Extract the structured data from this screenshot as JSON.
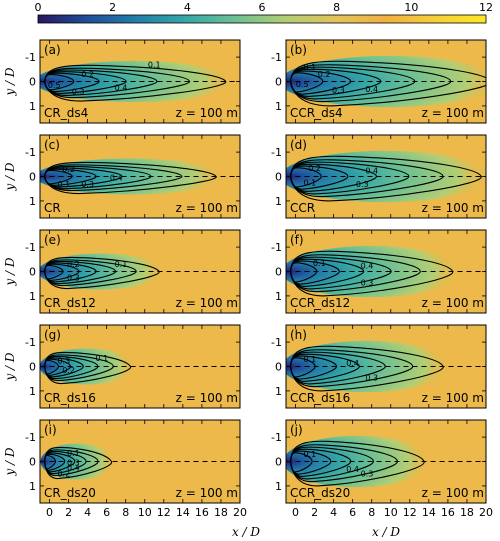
{
  "chart_data": {
    "type": "heatmap",
    "colorbar": {
      "ticks": [
        "0",
        "2",
        "4",
        "6",
        "8",
        "10",
        "12"
      ],
      "range": [
        0,
        12
      ],
      "colormap": [
        "#26185f",
        "#1f4e9a",
        "#237fa8",
        "#36a8a6",
        "#6fc192",
        "#b3ce73",
        "#e3c35a",
        "#f1b040",
        "#f7d038",
        "#fde725"
      ]
    },
    "x_ticks": [
      "0",
      "2",
      "4",
      "6",
      "8",
      "10",
      "12",
      "14",
      "16",
      "18",
      "20"
    ],
    "y_ticks": [
      "-1",
      "0",
      "1"
    ],
    "xlim": [
      -1,
      20
    ],
    "ylim": [
      1.7,
      -1.7
    ],
    "xlabel": "x / D",
    "ylabel": "y / D",
    "height_label": "z = 100 m",
    "background_value": 9.3,
    "panels": [
      {
        "letter": "(a)",
        "case": "CR_ds4",
        "wake_length": 19,
        "wake_width": 0.8,
        "contours": [
          {
            "value": "0.1",
            "x": 11,
            "y": -0.7
          },
          {
            "value": "0.2",
            "x": 4,
            "y": -0.3
          },
          {
            "value": "0.3",
            "x": 3,
            "y": 0.4
          },
          {
            "value": "0.4",
            "x": 7.5,
            "y": 0.25
          },
          {
            "value": "0.5",
            "x": 0.5,
            "y": 0.15
          }
        ]
      },
      {
        "letter": "(b)",
        "case": "CCR_ds4",
        "wake_length": 21,
        "wake_width": 1.0,
        "contours": [
          {
            "value": "0.1",
            "x": 1.5,
            "y": -0.6
          },
          {
            "value": "0.2",
            "x": 3,
            "y": -0.3
          },
          {
            "value": "0.3",
            "x": 4.5,
            "y": 0.35
          },
          {
            "value": "0.4",
            "x": 8,
            "y": 0.3
          },
          {
            "value": "0.5",
            "x": 0.7,
            "y": 0.1
          }
        ]
      },
      {
        "letter": "(c)",
        "case": "CR",
        "wake_length": 18,
        "wake_width": 0.7,
        "contours": [
          {
            "value": "0.2",
            "x": 2,
            "y": -0.3
          },
          {
            "value": "0.1",
            "x": 1.5,
            "y": 0.3
          },
          {
            "value": "0.3",
            "x": 4,
            "y": 0.3
          },
          {
            "value": "0.4",
            "x": 7,
            "y": 0.05
          }
        ]
      },
      {
        "letter": "(d)",
        "case": "CCR",
        "wake_length": 20,
        "wake_width": 1.0,
        "contours": [
          {
            "value": "0.2",
            "x": 2,
            "y": -0.35
          },
          {
            "value": "0.4",
            "x": 8,
            "y": -0.25
          },
          {
            "value": "0.3",
            "x": 7,
            "y": 0.3
          },
          {
            "value": "0.1",
            "x": 1.5,
            "y": 0.25
          }
        ]
      },
      {
        "letter": "(e)",
        "case": "CR_ds12",
        "wake_length": 12,
        "wake_width": 0.7,
        "contours": [
          {
            "value": "0.2",
            "x": 2.5,
            "y": -0.3
          },
          {
            "value": "0.1",
            "x": 7.5,
            "y": -0.3
          },
          {
            "value": "0.3",
            "x": 2.5,
            "y": 0.25
          }
        ]
      },
      {
        "letter": "(f)",
        "case": "CCR_ds12",
        "wake_length": 17,
        "wake_width": 1.0,
        "contours": [
          {
            "value": "0.1",
            "x": 2.5,
            "y": -0.35
          },
          {
            "value": "0.4",
            "x": 7.5,
            "y": -0.25
          },
          {
            "value": "0.3",
            "x": 7.5,
            "y": 0.45
          }
        ]
      },
      {
        "letter": "(g)",
        "case": "CR_ds16",
        "wake_length": 9,
        "wake_width": 0.7,
        "contours": [
          {
            "value": "0.3",
            "x": 1.5,
            "y": -0.25
          },
          {
            "value": "0.1",
            "x": 5.5,
            "y": -0.35
          },
          {
            "value": "0.2",
            "x": 2,
            "y": 0.15
          }
        ]
      },
      {
        "letter": "(h)",
        "case": "CCR_ds16",
        "wake_length": 16,
        "wake_width": 1.0,
        "contours": [
          {
            "value": "0.1",
            "x": 1.5,
            "y": -0.3
          },
          {
            "value": "0.4",
            "x": 6,
            "y": -0.15
          },
          {
            "value": "0.3",
            "x": 8,
            "y": 0.45
          }
        ]
      },
      {
        "letter": "(i)",
        "case": "CR_ds20",
        "wake_length": 7,
        "wake_width": 0.7,
        "contours": [
          {
            "value": "0.1",
            "x": 2.5,
            "y": -0.35
          },
          {
            "value": "0.3",
            "x": 2.5,
            "y": 0.05
          },
          {
            "value": "0.4",
            "x": 2.5,
            "y": 0.25
          },
          {
            "value": "0.2",
            "x": 1.5,
            "y": 0.5
          }
        ]
      },
      {
        "letter": "(j)",
        "case": "CCR_ds20",
        "wake_length": 14,
        "wake_width": 1.0,
        "contours": [
          {
            "value": "0.1",
            "x": 1.5,
            "y": -0.3
          },
          {
            "value": "0.4",
            "x": 6,
            "y": 0.3
          },
          {
            "value": "0.3",
            "x": 7.5,
            "y": 0.5
          }
        ]
      }
    ]
  }
}
